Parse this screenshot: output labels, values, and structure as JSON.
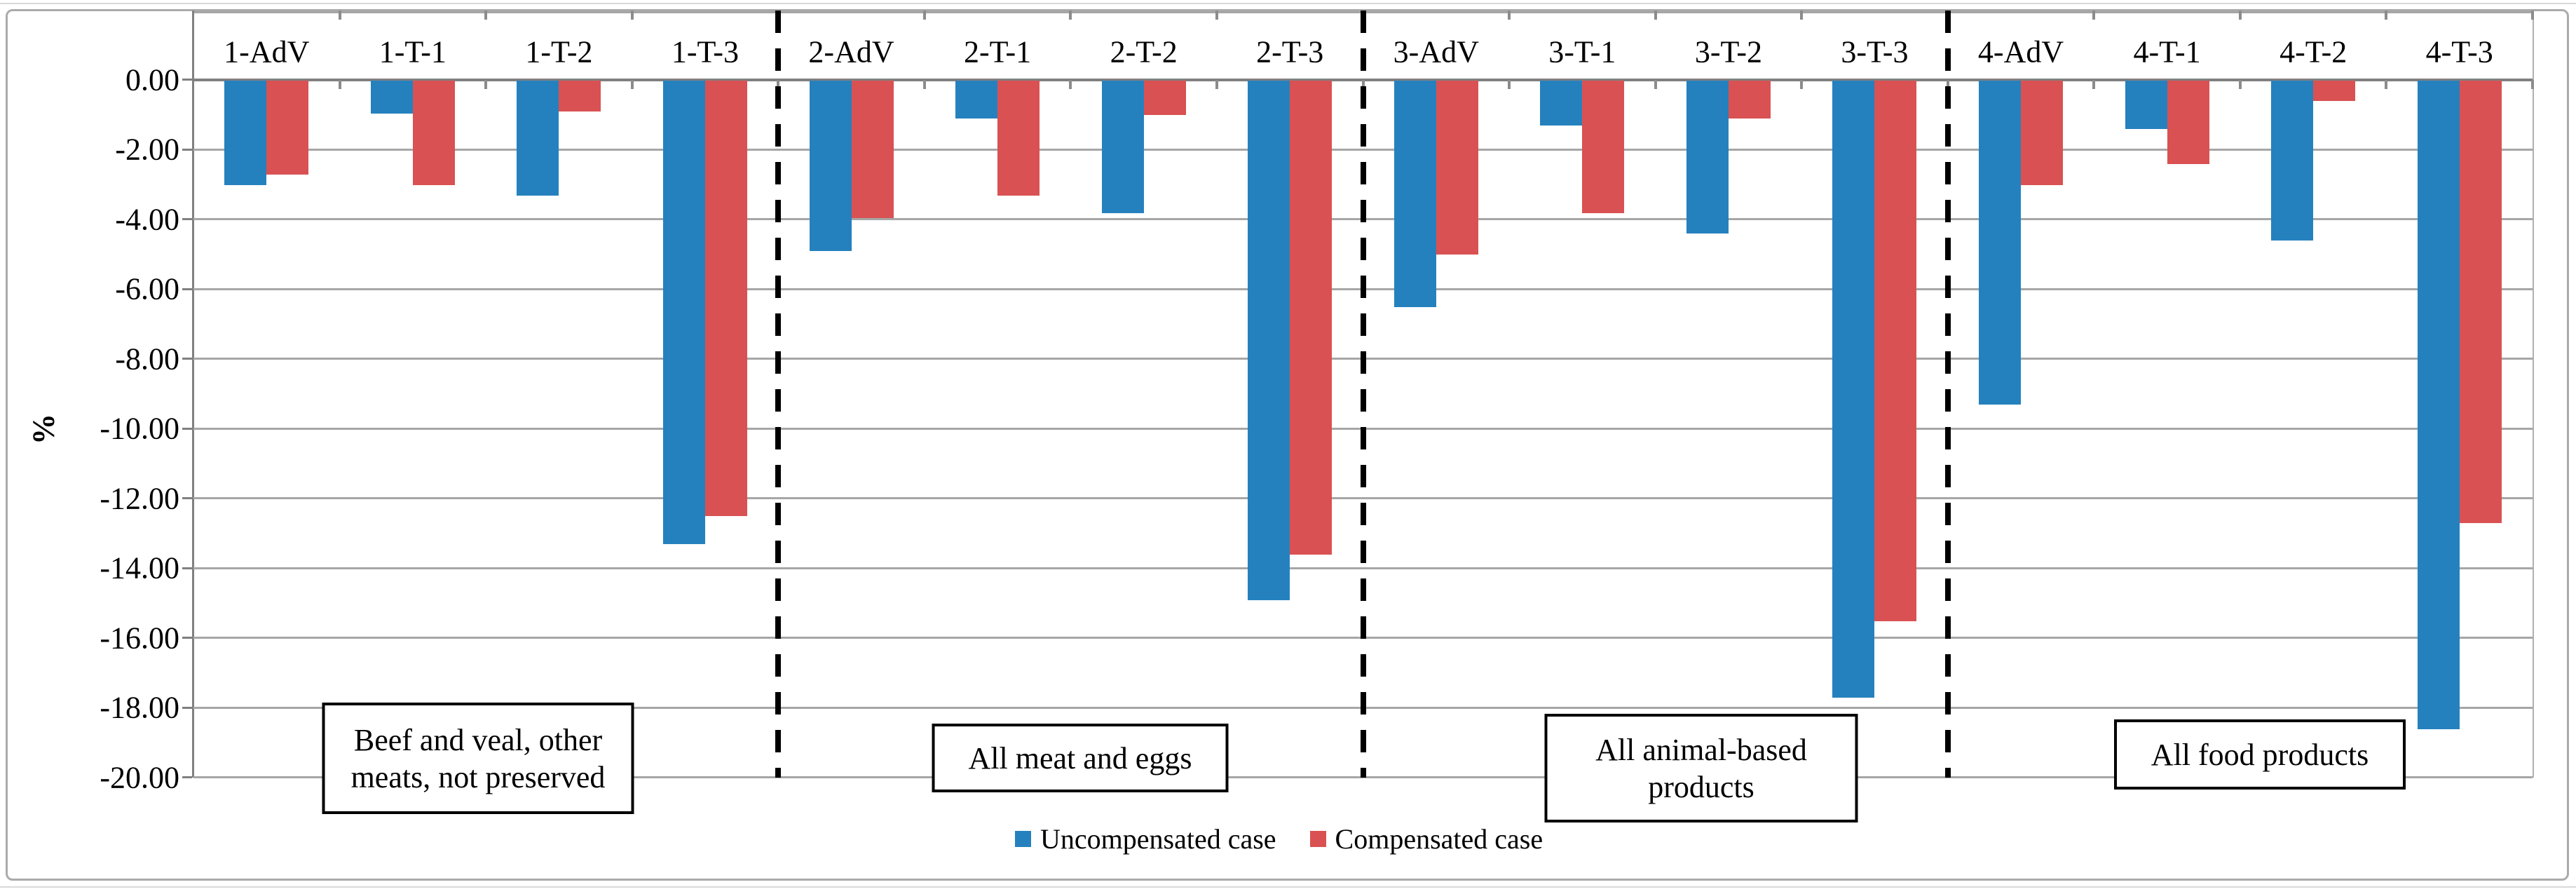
{
  "chart_data": {
    "type": "bar",
    "title": "",
    "ylabel": "%",
    "ylim": [
      -20,
      0
    ],
    "ytick_step": 2,
    "grid": true,
    "legend_position": "bottom-center",
    "ytick_labels": [
      "0.00",
      "-2.00",
      "-4.00",
      "-6.00",
      "-8.00",
      "-10.00",
      "-12.00",
      "-14.00",
      "-16.00",
      "-18.00",
      "-20.00"
    ],
    "categories": [
      "1-AdV",
      "1-T-1",
      "1-T-2",
      "1-T-3",
      "2-AdV",
      "2-T-1",
      "2-T-2",
      "2-T-3",
      "3-AdV",
      "3-T-1",
      "3-T-2",
      "3-T-3",
      "4-AdV",
      "4-T-1",
      "4-T-2",
      "4-T-3"
    ],
    "series": [
      {
        "name": "Uncompensated case",
        "color": "#2581be",
        "values": [
          -3.0,
          -0.95,
          -3.3,
          -13.3,
          -4.9,
          -1.1,
          -3.8,
          -14.9,
          -6.5,
          -1.3,
          -4.4,
          -17.7,
          -9.3,
          -1.4,
          -4.6,
          -18.6
        ]
      },
      {
        "name": "Compensated case",
        "color": "#d95152",
        "values": [
          -2.7,
          -3.0,
          -0.9,
          -12.5,
          -3.95,
          -3.3,
          -1.0,
          -13.6,
          -5.0,
          -3.8,
          -1.1,
          -15.5,
          -3.0,
          -2.4,
          -0.6,
          -12.7
        ]
      }
    ],
    "groups": [
      {
        "label": "Beef and veal, other meats, not preserved",
        "lines": [
          "Beef and veal, other",
          "meats, not preserved"
        ],
        "category_span": [
          "1-AdV",
          "1-T-3"
        ]
      },
      {
        "label": "All meat and eggs",
        "lines": [
          "All meat and eggs"
        ],
        "category_span": [
          "2-AdV",
          "2-T-3"
        ]
      },
      {
        "label": "All animal-based products",
        "lines": [
          "All animal-based",
          "products"
        ],
        "category_span": [
          "3-AdV",
          "3-T-3"
        ]
      },
      {
        "label": "All food products",
        "lines": [
          "All food products"
        ],
        "category_span": [
          "4-AdV",
          "4-T-3"
        ]
      }
    ],
    "separators_after_category_index": [
      3,
      7,
      11
    ]
  },
  "colors": {
    "uncompensated": "#2581be",
    "compensated": "#d95152",
    "gridline": "#a6a6a6",
    "axis": "#808080",
    "chart_border": "#ababab",
    "separator": "#000000"
  }
}
